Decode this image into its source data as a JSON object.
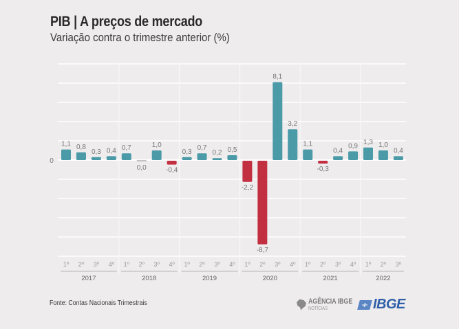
{
  "header": {
    "title": "PIB | A preços de mercado",
    "subtitle": "Variação contra o trimestre anterior (%)"
  },
  "footer": {
    "source": "Fonte: Contas Nacionais Trimestrais",
    "logo_agencia_main": "AGÊNCIA IBGE",
    "logo_agencia_sub": "NOTÍCIAS",
    "logo_ibge": "IBGE"
  },
  "colors": {
    "positive": "#4a9aa8",
    "negative": "#c22f41",
    "background": "#eeeced",
    "gridline": "#ffffff",
    "label": "#777777"
  },
  "chart_data": {
    "type": "bar",
    "title": "PIB | A preços de mercado",
    "subtitle": "Variação contra o trimestre anterior (%)",
    "xlabel": "",
    "ylabel": "",
    "ylim": [
      -10,
      10
    ],
    "grid": true,
    "y_tick_labels": [
      "0"
    ],
    "groups": [
      {
        "year": "2017",
        "quarters": [
          "1º",
          "2º",
          "3º",
          "4º"
        ]
      },
      {
        "year": "2018",
        "quarters": [
          "1º",
          "2º",
          "3º",
          "4º"
        ]
      },
      {
        "year": "2019",
        "quarters": [
          "1º",
          "2º",
          "3º",
          "4º"
        ]
      },
      {
        "year": "2020",
        "quarters": [
          "1º",
          "2º",
          "3º",
          "4º"
        ]
      },
      {
        "year": "2021",
        "quarters": [
          "1º",
          "2º",
          "3º",
          "4º"
        ]
      },
      {
        "year": "2022",
        "quarters": [
          "1º",
          "2º",
          "3º"
        ]
      }
    ],
    "categories": [
      "2017 1º",
      "2017 2º",
      "2017 3º",
      "2017 4º",
      "2018 1º",
      "2018 2º",
      "2018 3º",
      "2018 4º",
      "2019 1º",
      "2019 2º",
      "2019 3º",
      "2019 4º",
      "2020 1º",
      "2020 2º",
      "2020 3º",
      "2020 4º",
      "2021 1º",
      "2021 2º",
      "2021 3º",
      "2021 4º",
      "2022 1º",
      "2022 2º",
      "2022 3º"
    ],
    "values": [
      1.1,
      0.8,
      0.3,
      0.4,
      0.7,
      0.0,
      1.0,
      -0.4,
      0.3,
      0.7,
      0.2,
      0.5,
      -2.2,
      -8.7,
      8.1,
      3.2,
      1.1,
      -0.3,
      0.4,
      0.9,
      1.3,
      1.0,
      0.4
    ],
    "value_labels": [
      "1,1",
      "0,8",
      "0,3",
      "0,4",
      "0,7",
      "0,0",
      "1,0",
      "-0,4",
      "0,3",
      "0,7",
      "0,2",
      "0,5",
      "-2,2",
      "-8,7",
      "8,1",
      "3,2",
      "1,1",
      "-0,3",
      "0,4",
      "0,9",
      "1,3",
      "1,0",
      "0,4"
    ]
  }
}
